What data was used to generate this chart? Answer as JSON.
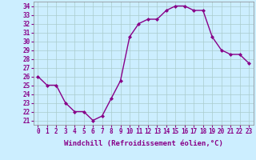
{
  "x": [
    0,
    1,
    2,
    3,
    4,
    5,
    6,
    7,
    8,
    9,
    10,
    11,
    12,
    13,
    14,
    15,
    16,
    17,
    18,
    19,
    20,
    21,
    22,
    23
  ],
  "y": [
    26,
    25,
    25,
    23,
    22,
    22,
    21,
    21.5,
    23.5,
    25.5,
    30.5,
    32,
    32.5,
    32.5,
    33.5,
    34,
    34,
    33.5,
    33.5,
    30.5,
    29,
    28.5,
    28.5,
    27.5
  ],
  "line_color": "#880088",
  "marker": "D",
  "marker_size": 2.0,
  "bg_color": "#cceeff",
  "grid_color": "#aacccc",
  "xlabel": "Windchill (Refroidissement éolien,°C)",
  "xlabel_fontsize": 6.5,
  "ylabel_ticks": [
    21,
    22,
    23,
    24,
    25,
    26,
    27,
    28,
    29,
    30,
    31,
    32,
    33,
    34
  ],
  "ylim": [
    20.5,
    34.5
  ],
  "xlim": [
    -0.5,
    23.5
  ],
  "xtick_labels": [
    "0",
    "1",
    "2",
    "3",
    "4",
    "5",
    "6",
    "7",
    "8",
    "9",
    "10",
    "11",
    "12",
    "13",
    "14",
    "15",
    "16",
    "17",
    "18",
    "19",
    "20",
    "21",
    "22",
    "23"
  ],
  "tick_fontsize": 5.5,
  "line_width": 1.0
}
